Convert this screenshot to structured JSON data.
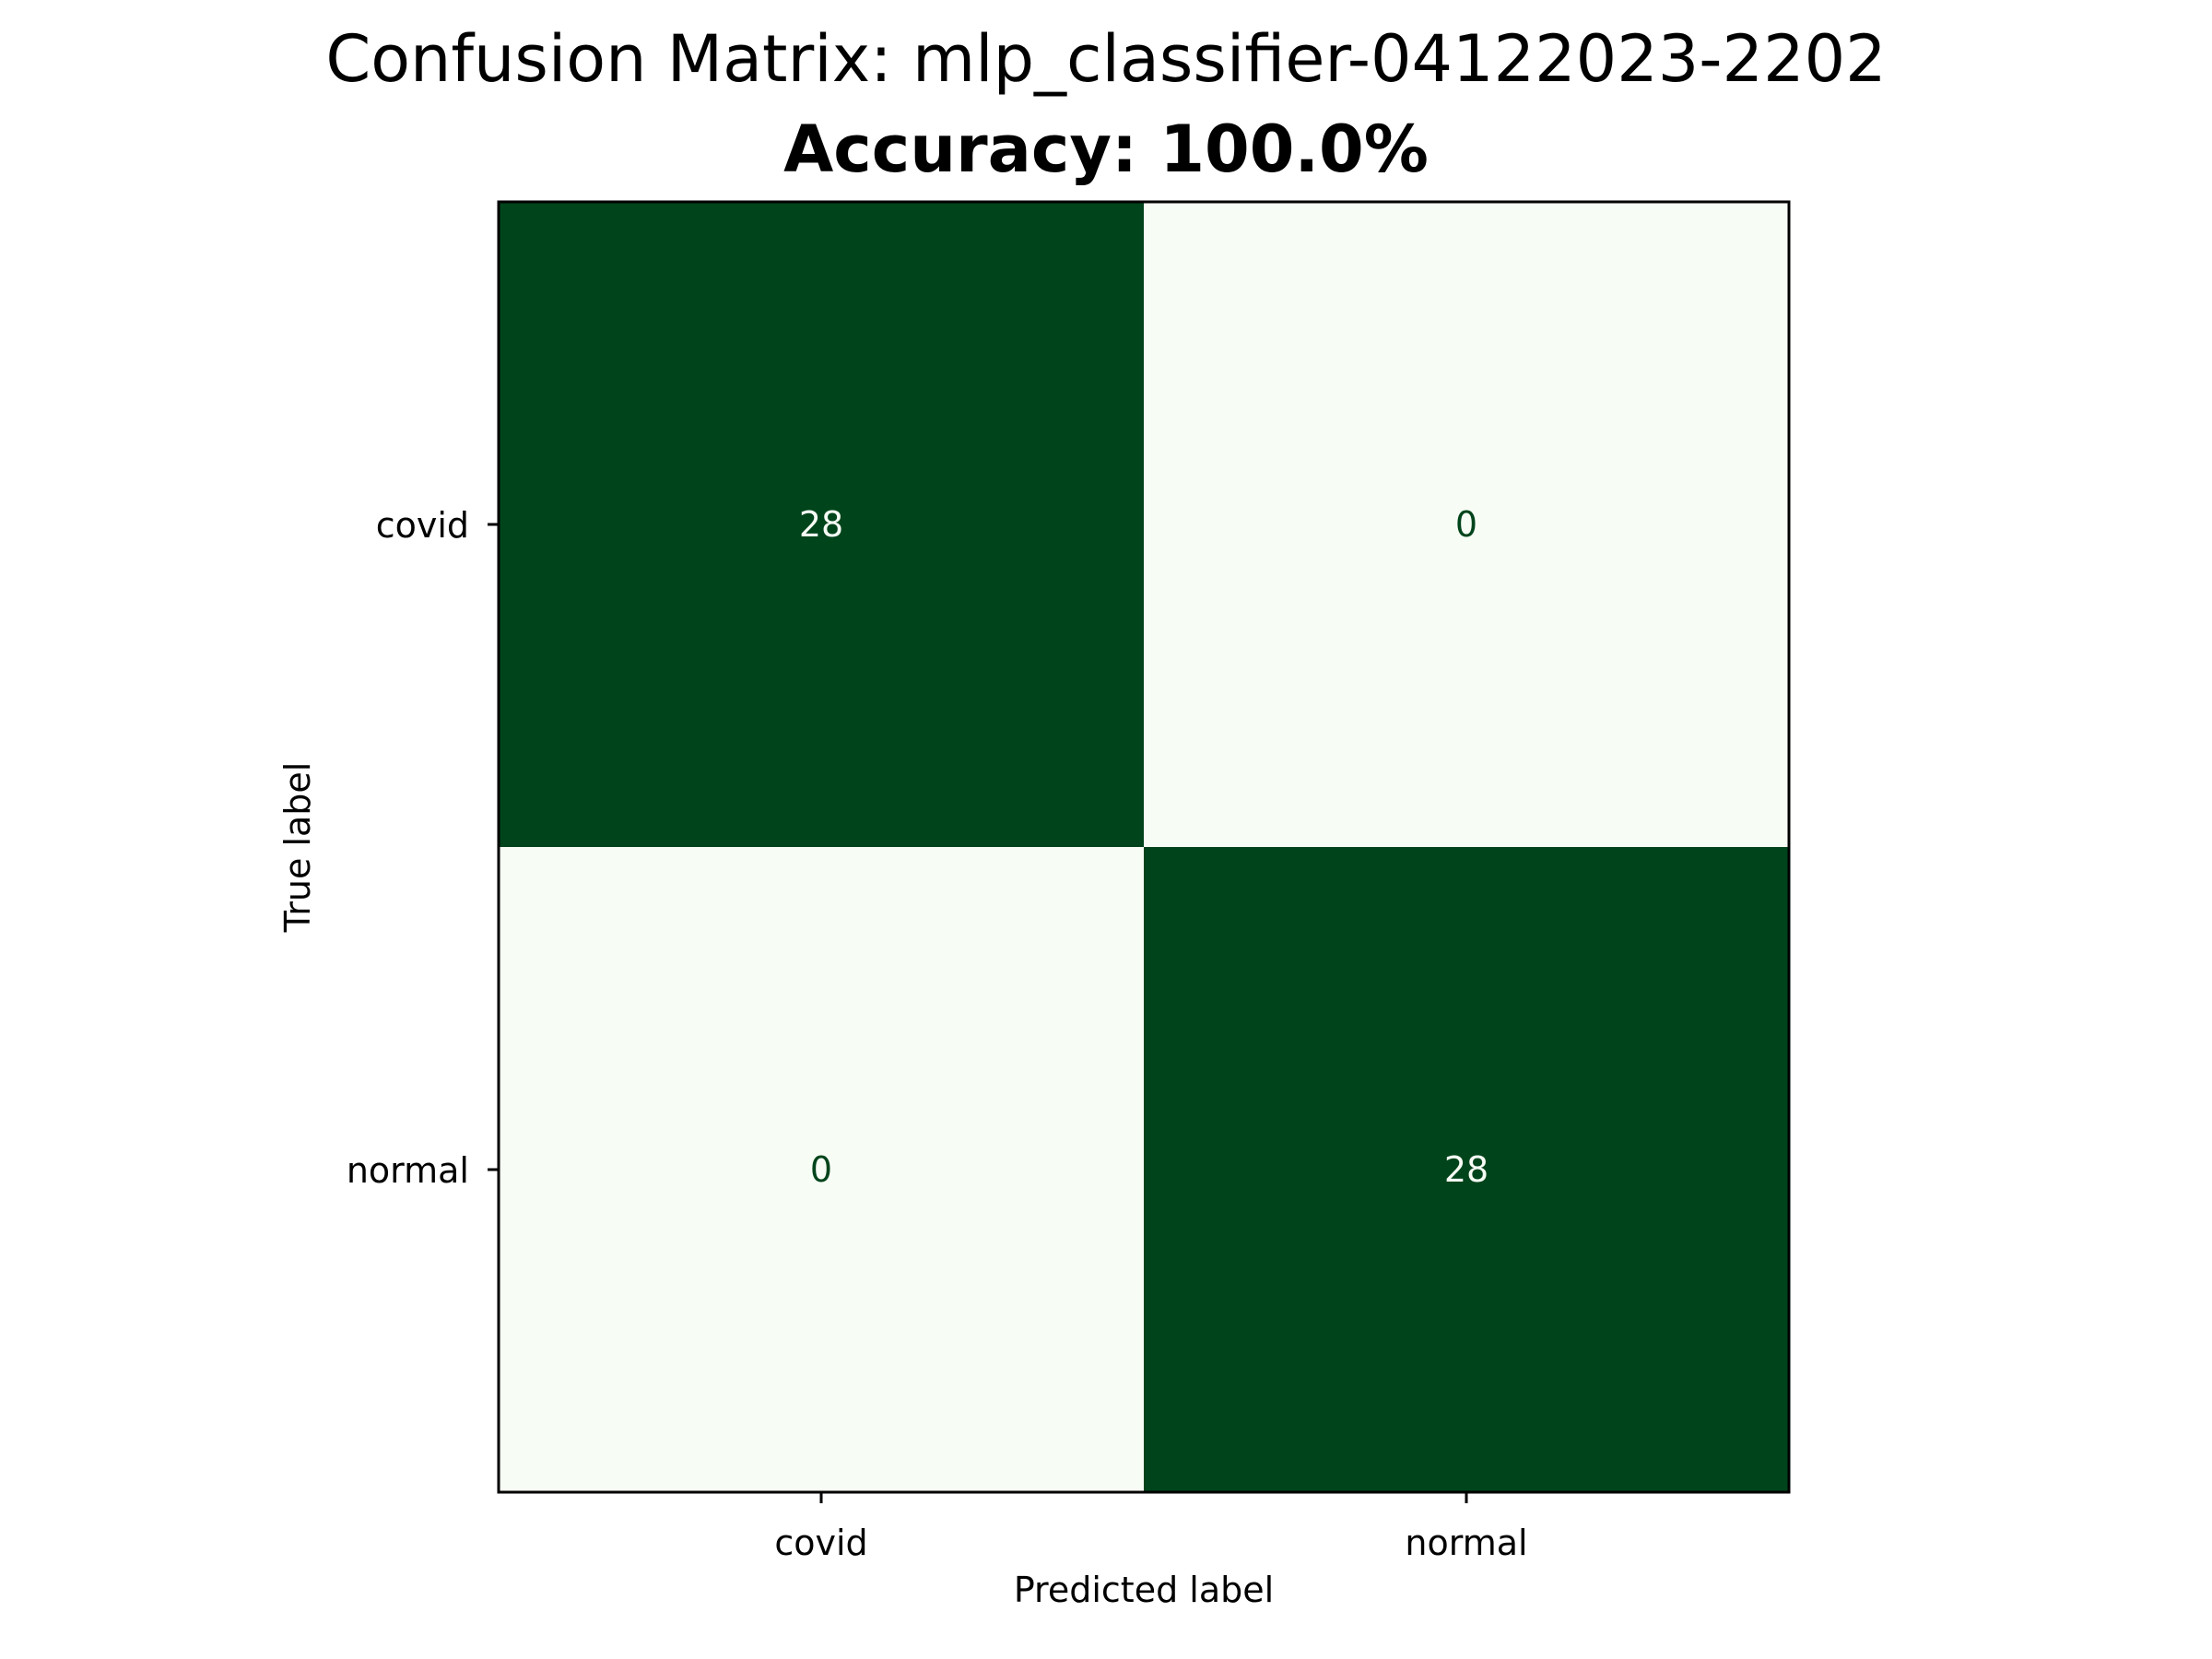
{
  "chart_data": {
    "type": "heatmap",
    "title": "Confusion Matrix: mlp_classifier-04122023-2202",
    "subtitle": "Accuracy: 100.0%",
    "xlabel": "Predicted label",
    "ylabel": "True label",
    "x_categories": [
      "covid",
      "normal"
    ],
    "y_categories": [
      "covid",
      "normal"
    ],
    "matrix": [
      [
        28,
        0
      ],
      [
        0,
        28
      ]
    ],
    "value_range": [
      0,
      28
    ],
    "colormap": "Greens",
    "colors": {
      "low": "#f7fcf5",
      "high": "#00441b",
      "text_on_dark": "#f7fcf5",
      "text_on_light": "#00441b",
      "axis": "#000000"
    },
    "grid": false,
    "legend": "none"
  }
}
